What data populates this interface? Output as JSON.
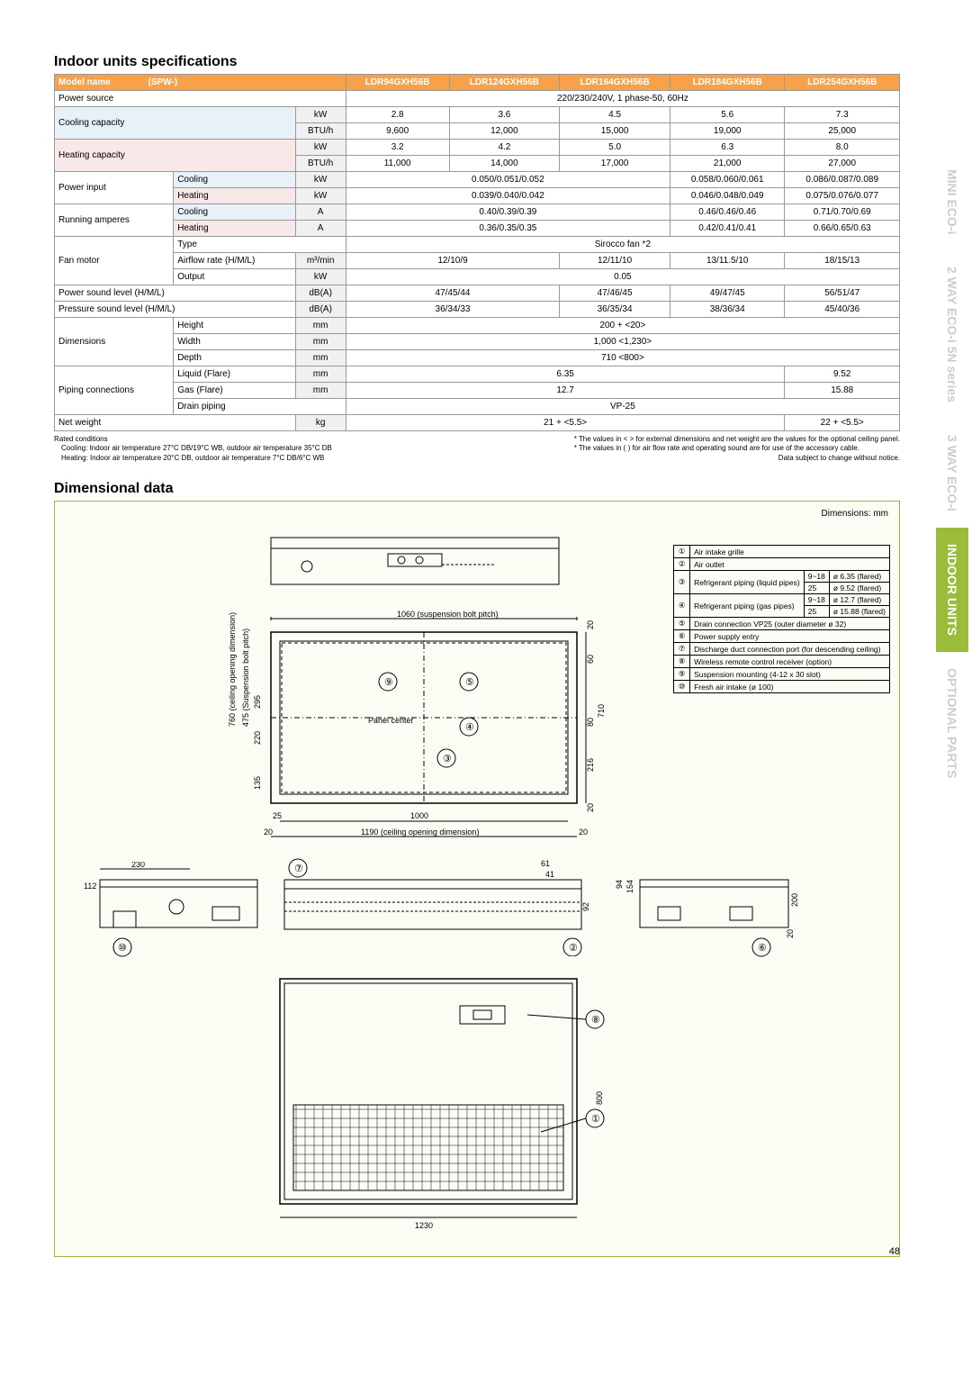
{
  "sideTabs": [
    "MINI ECO-i",
    "2 WAY ECO-i 5N series",
    "3 WAY ECO-i",
    "INDOOR UNITS",
    "OPTIONAL PARTS"
  ],
  "specTitle": "Indoor units specifications",
  "modelNameLabel": "Model name",
  "spwLabel": "(SPW-)",
  "models": [
    "LDR94GXH56B",
    "LDR124GXH56B",
    "LDR164GXH56B",
    "LDR184GXH56B",
    "LDR254GXH56B"
  ],
  "rows": {
    "powerSource": {
      "label": "Power source",
      "value": "220/230/240V, 1 phase-50, 60Hz"
    },
    "coolCap": {
      "label": "Cooling capacity",
      "kW": [
        "2.8",
        "3.6",
        "4.5",
        "5.6",
        "7.3"
      ],
      "btu": [
        "9,600",
        "12,000",
        "15,000",
        "19,000",
        "25,000"
      ]
    },
    "heatCap": {
      "label": "Heating capacity",
      "kW": [
        "3.2",
        "4.2",
        "5.0",
        "6.3",
        "8.0"
      ],
      "btu": [
        "11,000",
        "14,000",
        "17,000",
        "21,000",
        "27,000"
      ]
    },
    "powerInput": {
      "label": "Power input",
      "cool": [
        "0.050/0.051/0.052",
        "0.058/0.060/0.061",
        "0.086/0.087/0.089"
      ],
      "coolSpan": [
        3,
        1,
        1
      ],
      "heat": [
        "0.039/0.040/0.042",
        "0.046/0.048/0.049",
        "0.075/0.076/0.077"
      ],
      "heatSpan": [
        3,
        1,
        1
      ]
    },
    "runAmp": {
      "label": "Running amperes",
      "cool": [
        "0.40/0.39/0.39",
        "0.46/0.46/0.46",
        "0.71/0.70/0.69"
      ],
      "coolSpan": [
        3,
        1,
        1
      ],
      "heat": [
        "0.36/0.35/0.35",
        "0.42/0.41/0.41",
        "0.66/0.65/0.63"
      ],
      "heatSpan": [
        3,
        1,
        1
      ]
    },
    "fanMotor": {
      "label": "Fan motor",
      "type": "Sirocco fan *2",
      "airflow": [
        "12/10/9",
        "12/11/10",
        "13/11.5/10",
        "18/15/13"
      ],
      "airflowSpan": [
        2,
        1,
        1,
        1
      ],
      "output": "0.05"
    },
    "powerSound": {
      "label": "Power sound level (H/M/L)",
      "unit": "dB(A)",
      "vals": [
        "47/45/44",
        "47/46/45",
        "49/47/45",
        "56/51/47"
      ],
      "span": [
        2,
        1,
        1,
        1
      ]
    },
    "pressSound": {
      "label": "Pressure sound level (H/M/L)",
      "unit": "dB(A)",
      "vals": [
        "36/34/33",
        "36/35/34",
        "38/36/34",
        "45/40/36"
      ],
      "span": [
        2,
        1,
        1,
        1
      ]
    },
    "dims": {
      "label": "Dimensions",
      "h": "200 + <20>",
      "w": "1,000 <1,230>",
      "d": "710 <800>"
    },
    "piping": {
      "label": "Piping connections",
      "liquid": [
        "6.35",
        "9.52"
      ],
      "liquidSpan": [
        4,
        1
      ],
      "gas": [
        "12.7",
        "15.88"
      ],
      "gasSpan": [
        4,
        1
      ],
      "drain": "VP-25"
    },
    "netWeight": {
      "label": "Net weight",
      "unit": "kg",
      "vals": [
        "21 + <5.5>",
        "22 + <5.5>"
      ],
      "span": [
        4,
        1
      ]
    }
  },
  "units": {
    "kW": "kW",
    "btu": "BTU/h",
    "A": "A",
    "m3min": "m³/min",
    "mm": "mm",
    "kg": "kg",
    "dBA": "dB(A)"
  },
  "sublabels": {
    "cooling": "Cooling",
    "heating": "Heating",
    "type": "Type",
    "airflow": "Airflow rate (H/M/L)",
    "output": "Output",
    "height": "Height",
    "width": "Width",
    "depth": "Depth",
    "liquid": "Liquid (Flare)",
    "gas": "Gas (Flare)",
    "drain": "Drain piping"
  },
  "notes": {
    "rated": "Rated conditions",
    "cool": "Cooling: Indoor air temperature 27°C DB/19°C WB, outdoor air temperature 35°C DB",
    "heat": "Heating: Indoor air temperature 20°C DB, outdoor air temperature 7°C DB/6°C WB",
    "star1": "* The values in < > for external dimensions and net weight are the values for the optional ceiling panel.",
    "star2": "* The values in ( ) for air flow rate and operating sound are for use of the accessory cable.",
    "subject": "Data subject to change without notice."
  },
  "dimTitle": "Dimensional data",
  "dimUnit": "Dimensions: mm",
  "legend": [
    {
      "n": "①",
      "t": "Air intake grille"
    },
    {
      "n": "②",
      "t": "Air outlet"
    },
    {
      "n": "③",
      "t": "Refrigerant piping (liquid pipes)",
      "sub": [
        [
          "9~18",
          "ø 6.35 (flared)"
        ],
        [
          "25",
          "ø 9.52 (flared)"
        ]
      ]
    },
    {
      "n": "④",
      "t": "Refrigerant piping (gas pipes)",
      "sub": [
        [
          "9~18",
          "ø 12.7 (flared)"
        ],
        [
          "25",
          "ø 15.88 (flared)"
        ]
      ]
    },
    {
      "n": "⑤",
      "t": "Drain connection VP25 (outer diameter ø 32)"
    },
    {
      "n": "⑥",
      "t": "Power supply entry"
    },
    {
      "n": "⑦",
      "t": "Discharge duct connection port (for descending ceiling)"
    },
    {
      "n": "⑧",
      "t": "Wireless remote control receiver (option)"
    },
    {
      "n": "⑨",
      "t": "Suspension mounting (4-12 x 30 slot)"
    },
    {
      "n": "⑩",
      "t": "Fresh air intake (ø 100)"
    }
  ],
  "dimLabels": {
    "d1060": "1060",
    "susp": "(suspension bolt pitch)",
    "d760": "760",
    "ceilOpen": "(ceiling opening dimension)",
    "d475": "475",
    "d295": "295",
    "d220": "220",
    "d135": "135",
    "d25": "25",
    "d20": "20",
    "d1000": "1000",
    "d1190": "1190",
    "panelCenter": "Panel center",
    "d60": "60",
    "d710": "710",
    "d80": "80",
    "d216": "216",
    "d230": "230",
    "d112": "112",
    "d92": "92",
    "d61": "61",
    "d41": "41",
    "d94": "94",
    "d154": "154",
    "d200": "200",
    "d800": "800",
    "d1230": "1230",
    "suspBolt": "(Suspension bolt pitch)"
  },
  "circled": [
    "①",
    "②",
    "③",
    "④",
    "⑤",
    "⑥",
    "⑦",
    "⑧",
    "⑨",
    "⑩"
  ],
  "pageNum": "48"
}
